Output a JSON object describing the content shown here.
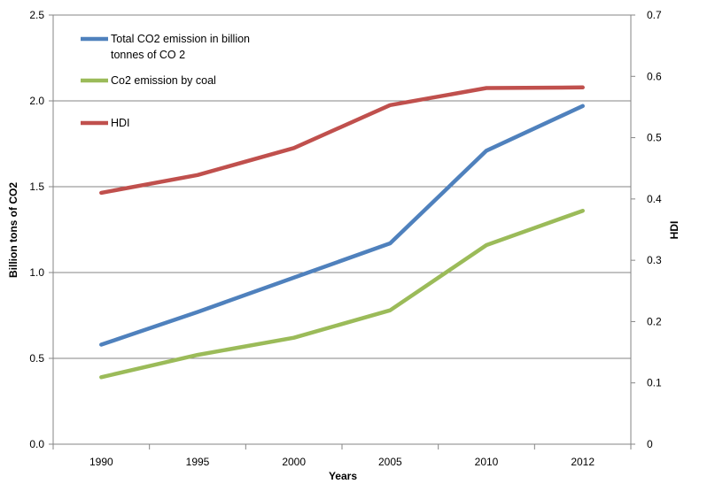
{
  "chart_data": {
    "type": "line",
    "x": [
      "1990",
      "1995",
      "2000",
      "2005",
      "2010",
      "2012"
    ],
    "xlabel": "Years",
    "ylabel": "Billion tons of CO2",
    "y2label": "HDI",
    "ylim": [
      0,
      2.5
    ],
    "y2lim": [
      0,
      0.7
    ],
    "yticks": [
      "0.0",
      "0.5",
      "1.0",
      "1.5",
      "2.0",
      "2.5"
    ],
    "y2ticks": [
      "0",
      "0.1",
      "0.2",
      "0.3",
      "0.4",
      "0.5",
      "0.6",
      "0.7"
    ],
    "grid": true,
    "legend_position": "top-left",
    "series": [
      {
        "name": "Total CO2 emission in billion tonnes of CO 2",
        "legend_lines": [
          "Total CO2 emission in billion",
          "tonnes of CO 2"
        ],
        "axis": "left",
        "color": "#4f81bd",
        "values": [
          0.58,
          0.77,
          0.97,
          1.17,
          1.71,
          1.97
        ]
      },
      {
        "name": "Co2 emission by coal",
        "legend_lines": [
          "Co2 emission by coal"
        ],
        "axis": "left",
        "color": "#9bbb59",
        "values": [
          0.39,
          0.52,
          0.62,
          0.78,
          1.16,
          1.36
        ]
      },
      {
        "name": "HDI",
        "legend_lines": [
          "HDI"
        ],
        "axis": "right",
        "color": "#c0504d",
        "values": [
          0.41,
          0.439,
          0.483,
          0.553,
          0.581,
          0.582
        ]
      }
    ]
  }
}
